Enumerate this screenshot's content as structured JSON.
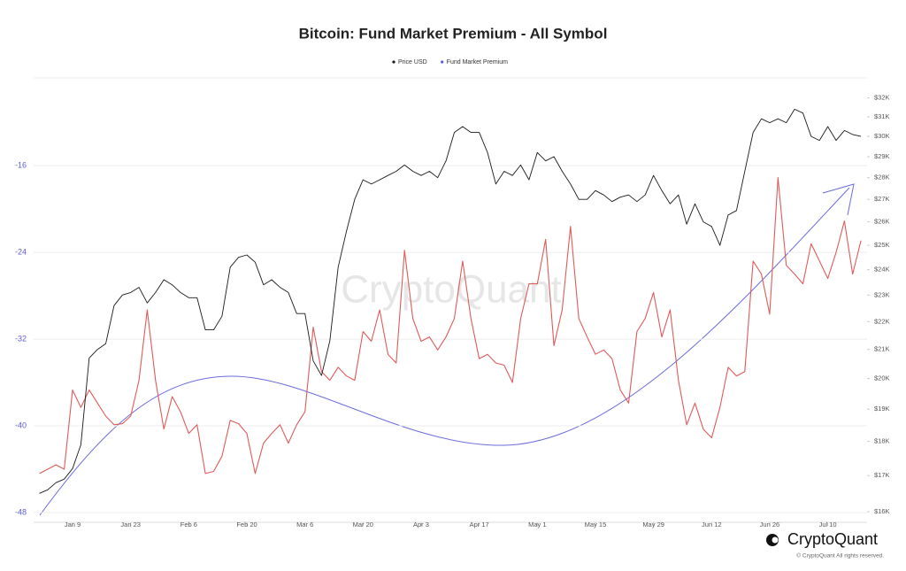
{
  "chart_data": {
    "type": "line",
    "title": "Bitcoin: Fund Market Premium - All Symbol",
    "watermark": "CryptoQuant",
    "brand": "CryptoQuant",
    "copyright": "© CryptoQuant All rights reserved.",
    "categories": [
      null,
      null,
      null,
      null,
      "Jan 9",
      null,
      null,
      null,
      null,
      null,
      null,
      "Jan 23",
      null,
      null,
      null,
      null,
      null,
      null,
      "Feb 6",
      null,
      null,
      null,
      null,
      null,
      null,
      "Feb 20",
      null,
      null,
      null,
      null,
      null,
      null,
      "Mar 6",
      null,
      null,
      null,
      null,
      null,
      null,
      "Mar 20",
      null,
      null,
      null,
      null,
      null,
      null,
      "Apr 3",
      null,
      null,
      null,
      null,
      null,
      null,
      "Apr 17",
      null,
      null,
      null,
      null,
      null,
      null,
      "May 1",
      null,
      null,
      null,
      null,
      null,
      null,
      "May 15",
      null,
      null,
      null,
      null,
      null,
      null,
      "May 29",
      null,
      null,
      null,
      null,
      null,
      null,
      "Jun 12",
      null,
      null,
      null,
      null,
      null,
      null,
      "Jun 26",
      null,
      null,
      null,
      null,
      null,
      null,
      "Jul 10",
      null,
      null,
      null,
      null
    ],
    "series": [
      {
        "name": "Price USD",
        "color": "#1a1a1a",
        "legend_color": "#1a1a1a",
        "axis": "y2",
        "values": [
          16500,
          16600,
          16800,
          16900,
          17200,
          17900,
          20700,
          21000,
          21200,
          22600,
          23000,
          23100,
          23300,
          22700,
          23100,
          23600,
          23400,
          23100,
          22900,
          22900,
          21700,
          21700,
          22200,
          24100,
          24500,
          24600,
          24300,
          23400,
          23600,
          23300,
          23100,
          22300,
          22300,
          20600,
          20100,
          21300,
          24100,
          25600,
          27000,
          27900,
          27700,
          27900,
          28100,
          28300,
          28600,
          28300,
          28100,
          28300,
          28000,
          28800,
          30200,
          30500,
          30200,
          30200,
          29200,
          27700,
          28300,
          28100,
          28600,
          27900,
          29200,
          28800,
          29000,
          28300,
          27700,
          27000,
          27000,
          27400,
          27200,
          26900,
          27100,
          27200,
          26900,
          27200,
          28100,
          27400,
          26800,
          27200,
          25900,
          26800,
          26000,
          25800,
          25000,
          26300,
          26500,
          28300,
          30200,
          30900,
          30700,
          30900,
          30700,
          31400,
          31200,
          30000,
          29800,
          30500,
          29800,
          30300,
          30100,
          30000
        ]
      },
      {
        "name": "Fund Market Premium",
        "color": "#e05a5a",
        "legend_color": "#5b5bd6",
        "values": [
          -44.4,
          -44.0,
          -43.6,
          -44.0,
          -36.7,
          -38.3,
          -36.7,
          -37.9,
          -39.1,
          -39.9,
          -39.8,
          -39.1,
          -35.8,
          -29.3,
          -35.8,
          -40.3,
          -37.3,
          -38.7,
          -40.7,
          -39.9,
          -44.4,
          -44.2,
          -42.8,
          -39.5,
          -39.8,
          -40.7,
          -44.4,
          -41.6,
          -40.7,
          -39.9,
          -41.6,
          -39.9,
          -38.7,
          -30.9,
          -35.0,
          -35.8,
          -34.6,
          -35.4,
          -35.8,
          -31.3,
          -32.2,
          -29.3,
          -33.4,
          -34.2,
          -23.8,
          -30.1,
          -32.2,
          -31.8,
          -33.0,
          -31.8,
          -30.1,
          -24.8,
          -30.1,
          -33.8,
          -33.4,
          -34.2,
          -34.4,
          -36.0,
          -30.1,
          -26.9,
          -26.9,
          -22.8,
          -32.6,
          -29.3,
          -21.6,
          -30.1,
          -31.8,
          -33.4,
          -33.0,
          -33.8,
          -36.7,
          -37.9,
          -31.3,
          -30.1,
          -27.7,
          -31.8,
          -29.3,
          -35.8,
          -39.9,
          -37.9,
          -40.3,
          -41.1,
          -38.3,
          -34.6,
          -35.4,
          -35.0,
          -24.8,
          -26.0,
          -29.7,
          -17.1,
          -25.2,
          -26.0,
          -26.9,
          -23.2,
          -24.8,
          -26.4,
          -24.0,
          -21.1,
          -26.0,
          -22.9
        ]
      }
    ],
    "ylim": [
      -48.9,
      -7.9
    ],
    "yticks": [
      -16,
      -24,
      -32,
      -40,
      -48
    ],
    "ytick_color": "#5b5bd6",
    "y2lim": [
      15720,
      33090
    ],
    "y2log": true,
    "y2ticks": [
      {
        "value": 32000,
        "label": "$32K"
      },
      {
        "value": 31000,
        "label": "$31K"
      },
      {
        "value": 30000,
        "label": "$30K"
      },
      {
        "value": 29000,
        "label": "$29K"
      },
      {
        "value": 28000,
        "label": "$28K"
      },
      {
        "value": 27000,
        "label": "$27K"
      },
      {
        "value": 26000,
        "label": "$26K"
      },
      {
        "value": 25000,
        "label": "$25K"
      },
      {
        "value": 24000,
        "label": "$24K"
      },
      {
        "value": 23000,
        "label": "$23K"
      },
      {
        "value": 22000,
        "label": "$22K"
      },
      {
        "value": 21000,
        "label": "$21K"
      },
      {
        "value": 20000,
        "label": "$20K"
      },
      {
        "value": 19000,
        "label": "$19K"
      },
      {
        "value": 18000,
        "label": "$18K"
      },
      {
        "value": 17000,
        "label": "$17K"
      },
      {
        "value": 16000,
        "label": "$16K"
      }
    ],
    "grid": true,
    "legend": "top"
  }
}
